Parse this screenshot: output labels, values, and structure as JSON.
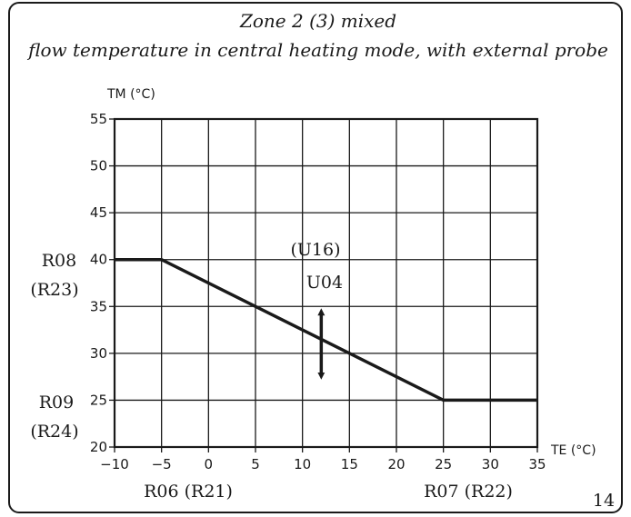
{
  "chart_data": {
    "type": "line",
    "title": "Zone 2 (3) mixed",
    "subtitle": "flow temperature in central heating mode, with external probe",
    "xlabel": "TE (°C)",
    "ylabel": "TM (°C)",
    "x_ticks": [
      "-10",
      "-5",
      "0",
      "5",
      "10",
      "15",
      "20",
      "25",
      "30",
      "35"
    ],
    "y_ticks": [
      "20",
      "25",
      "30",
      "35",
      "40",
      "45",
      "50",
      "55"
    ],
    "xlim": [
      -10,
      35
    ],
    "ylim": [
      20,
      55
    ],
    "grid": true,
    "series": [
      {
        "x": [
          -10,
          -5,
          25,
          35
        ],
        "y": [
          40,
          40,
          25,
          25
        ]
      }
    ],
    "annotations": {
      "shift_arrow": {
        "x": 12,
        "y_from": 27,
        "y_to": 35,
        "label_line1": "(U16)",
        "label_line2": "U04"
      },
      "y_param_high": {
        "line1": "R08",
        "line2": "(R23)"
      },
      "y_param_low": {
        "line1": "R09",
        "line2": "(R24)"
      },
      "x_param_low": "R06 (R21)",
      "x_param_high": "R07 (R22)"
    },
    "colors": {
      "line": "#1a1a1a",
      "grid": "#1a1a1a"
    }
  },
  "page_number": "14"
}
